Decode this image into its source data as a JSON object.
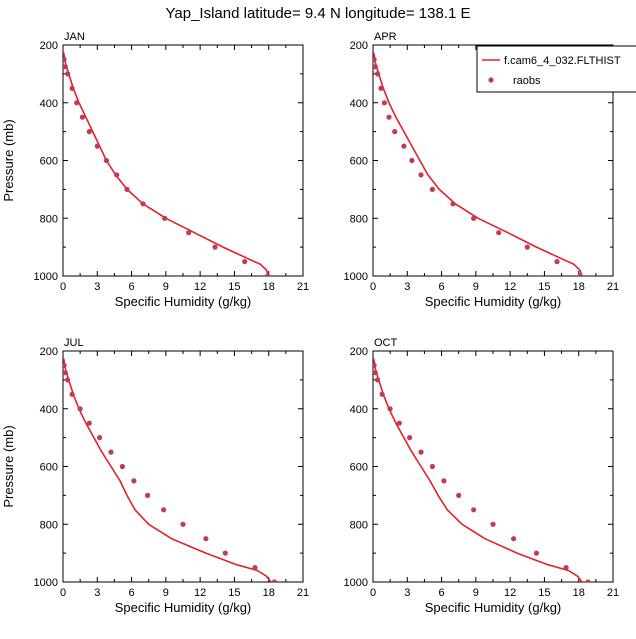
{
  "figure": {
    "title": "Yap_Island  latitude= 9.4 N longitude= 138.1 E"
  },
  "chart_data": {
    "type": "line",
    "xlabel": "Specific Humidity (g/kg)",
    "ylabel": "Pressure (mb)",
    "xlim": [
      0,
      21
    ],
    "ylim": [
      1000,
      200
    ],
    "y_inverted": true,
    "x_ticks": [
      "0",
      "3",
      "6",
      "9",
      "12",
      "15",
      "18",
      "21"
    ],
    "y_ticks": [
      "200",
      "400",
      "600",
      "800",
      "1000"
    ],
    "legend": {
      "placement": "top-right of APR panel",
      "entries": [
        {
          "name": "f.cam6_4_032.FLTHIST",
          "style": "line",
          "color": "#e8202a"
        },
        {
          "name": "raobs",
          "style": "marker",
          "color": "#c23a5a"
        }
      ]
    },
    "colors": {
      "model": "#e8202a",
      "obs": "#c23a5a"
    },
    "panels": [
      {
        "label": "JAN",
        "series": [
          {
            "name": "f.cam6_4_032.FLTHIST",
            "x": [
              0.05,
              0.2,
              0.5,
              0.9,
              1.4,
              2.0,
              2.6,
              3.2,
              3.8,
              4.6,
              5.6,
              7.0,
              9.0,
              11.5,
              14.0,
              16.2,
              17.3,
              17.8,
              18.0
            ],
            "y": [
              225,
              260,
              300,
              350,
              400,
              450,
              500,
              550,
              600,
              650,
              700,
              750,
              800,
              850,
              900,
              940,
              960,
              980,
              1000
            ]
          },
          {
            "name": "raobs",
            "x": [
              0.1,
              0.2,
              0.4,
              0.8,
              1.2,
              1.7,
              2.3,
              3.0,
              3.8,
              4.7,
              5.6,
              7.0,
              8.9,
              11.0,
              13.3,
              15.9,
              17.9
            ],
            "y": [
              250,
              275,
              300,
              350,
              400,
              450,
              500,
              550,
              600,
              650,
              700,
              750,
              800,
              850,
              900,
              950,
              1000
            ]
          }
        ]
      },
      {
        "label": "APR",
        "series": [
          {
            "name": "f.cam6_4_032.FLTHIST",
            "x": [
              0.05,
              0.2,
              0.5,
              0.9,
              1.4,
              2.0,
              2.7,
              3.4,
              4.1,
              4.8,
              5.8,
              7.2,
              9.2,
              11.8,
              14.3,
              16.5,
              17.6,
              18.1,
              18.3
            ],
            "y": [
              225,
              260,
              300,
              350,
              400,
              450,
              500,
              550,
              600,
              650,
              700,
              750,
              800,
              850,
              900,
              940,
              960,
              980,
              1000
            ]
          },
          {
            "name": "raobs",
            "x": [
              0.1,
              0.2,
              0.4,
              0.7,
              1.0,
              1.4,
              1.9,
              2.7,
              3.4,
              4.2,
              5.2,
              7.0,
              8.8,
              11.0,
              13.5,
              16.1,
              18.1
            ],
            "y": [
              250,
              275,
              300,
              350,
              400,
              450,
              500,
              550,
              600,
              650,
              700,
              750,
              800,
              850,
              900,
              950,
              1000
            ]
          }
        ]
      },
      {
        "label": "JUL",
        "series": [
          {
            "name": "f.cam6_4_032.FLTHIST",
            "x": [
              0.05,
              0.2,
              0.5,
              0.9,
              1.4,
              2.0,
              2.7,
              3.4,
              4.2,
              5.0,
              5.6,
              6.3,
              7.5,
              9.5,
              12.5,
              15.2,
              17.0,
              17.8,
              18.2
            ],
            "y": [
              225,
              260,
              300,
              350,
              400,
              450,
              500,
              550,
              600,
              650,
              700,
              750,
              800,
              850,
              900,
              940,
              960,
              980,
              1000
            ]
          },
          {
            "name": "raobs",
            "x": [
              0.1,
              0.2,
              0.4,
              0.8,
              1.5,
              2.3,
              3.2,
              4.2,
              5.2,
              6.2,
              7.4,
              8.8,
              10.5,
              12.5,
              14.2,
              16.8,
              18.5
            ],
            "y": [
              250,
              275,
              300,
              350,
              400,
              450,
              500,
              550,
              600,
              650,
              700,
              750,
              800,
              850,
              900,
              950,
              1000
            ]
          }
        ]
      },
      {
        "label": "OCT",
        "series": [
          {
            "name": "f.cam6_4_032.FLTHIST",
            "x": [
              0.05,
              0.2,
              0.5,
              0.9,
              1.4,
              2.0,
              2.7,
              3.4,
              4.2,
              5.0,
              5.7,
              6.5,
              7.8,
              9.8,
              12.6,
              15.3,
              17.1,
              17.9,
              18.3
            ],
            "y": [
              225,
              260,
              300,
              350,
              400,
              450,
              500,
              550,
              600,
              650,
              700,
              750,
              800,
              850,
              900,
              940,
              960,
              980,
              1000
            ]
          },
          {
            "name": "raobs",
            "x": [
              0.1,
              0.2,
              0.4,
              0.8,
              1.5,
              2.3,
              3.2,
              4.2,
              5.2,
              6.2,
              7.5,
              8.8,
              10.5,
              12.3,
              14.3,
              16.9,
              18.8
            ],
            "y": [
              250,
              275,
              300,
              350,
              400,
              450,
              500,
              550,
              600,
              650,
              700,
              750,
              800,
              850,
              900,
              950,
              1000
            ]
          }
        ]
      }
    ]
  }
}
